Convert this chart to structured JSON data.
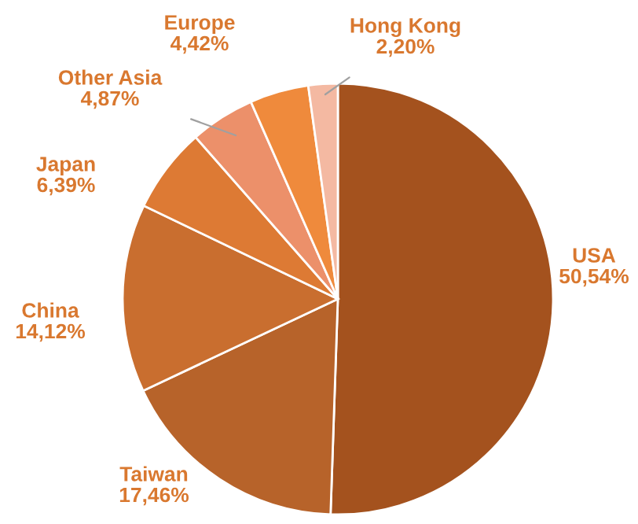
{
  "chart_data": {
    "type": "pie",
    "categories": [
      "USA",
      "Taiwan",
      "China",
      "Japan",
      "Other Asia",
      "Europe",
      "Hong Kong"
    ],
    "values": [
      50.54,
      17.46,
      14.12,
      6.39,
      4.87,
      4.42,
      2.2
    ],
    "value_labels": [
      "50,54%",
      "17,46%",
      "14,12%",
      "6,39%",
      "4,87%",
      "4,42%",
      "2,20%"
    ],
    "colors": [
      "#a4521e",
      "#b7632a",
      "#c96e2f",
      "#dd7a34",
      "#ec906a",
      "#ef8a3c",
      "#f4b9a2"
    ],
    "legend": false
  }
}
